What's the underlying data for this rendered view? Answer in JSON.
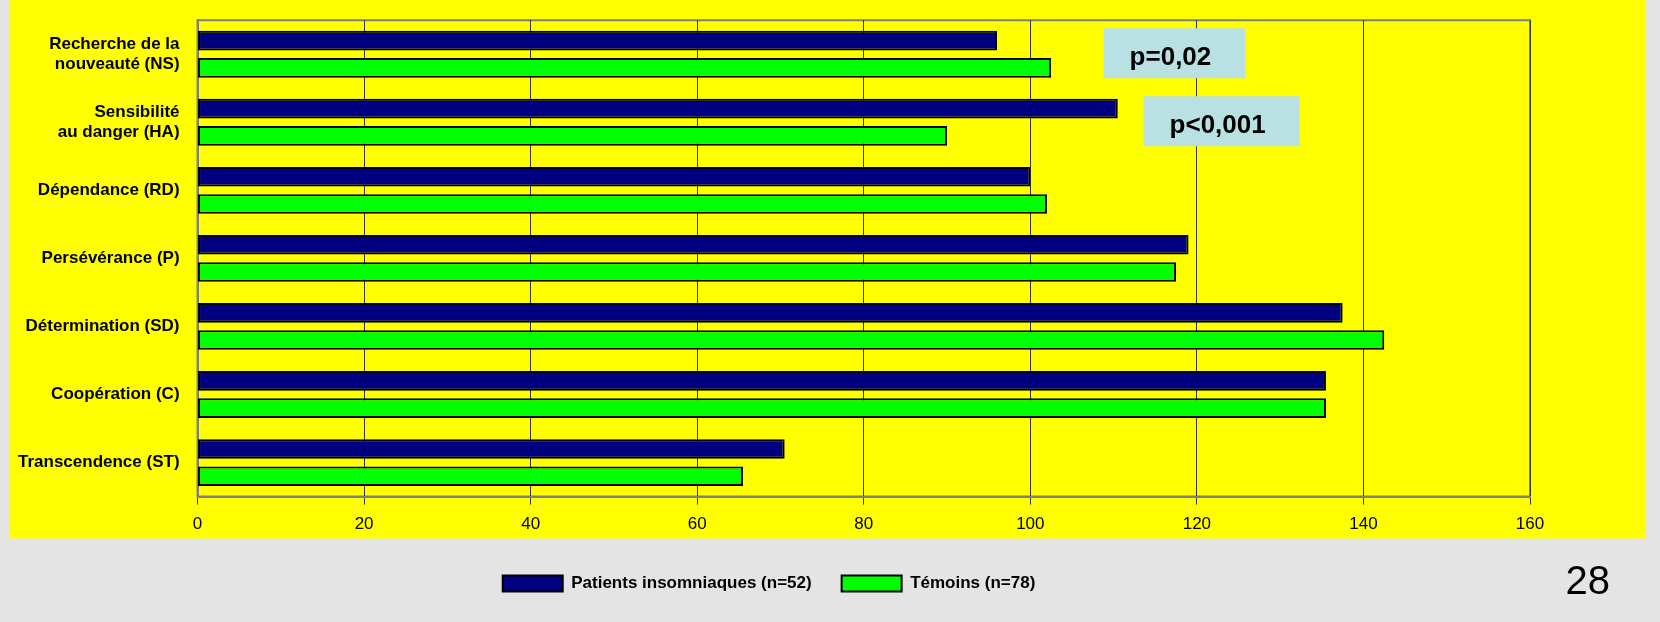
{
  "chart_data": {
    "type": "bar",
    "orientation": "horizontal",
    "categories": [
      "Recherche de la\nnouveauté (NS)",
      "Sensibilité\nau danger (HA)",
      "Dépendance (RD)",
      "Persévérance (P)",
      "Détermination (SD)",
      "Coopération (C)",
      "Transcendence (ST)"
    ],
    "series": [
      {
        "name": "Patients insomniaques (n=52)",
        "color": "#000080",
        "values": [
          96,
          110.5,
          100,
          119,
          137.5,
          135.5,
          70.5
        ]
      },
      {
        "name": "Témoins (n=78)",
        "color": "#00ff00",
        "values": [
          102.5,
          90,
          102,
          117.5,
          142.5,
          135.5,
          65.5
        ]
      }
    ],
    "xlim": [
      0,
      160
    ],
    "xticks": [
      0,
      20,
      40,
      60,
      80,
      100,
      120,
      140,
      160
    ],
    "grid": "x",
    "legend": "bottom",
    "annotations": [
      "p=0,02",
      "p<0,001",
      "28"
    ]
  }
}
